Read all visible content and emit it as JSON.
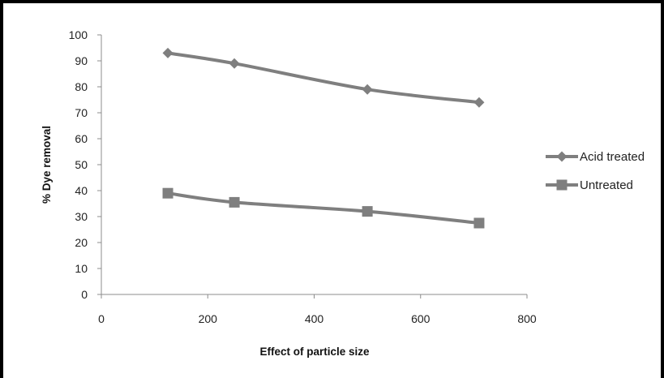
{
  "chart_data": {
    "type": "line",
    "title": "",
    "xlabel": "Effect of particle size",
    "ylabel": "% Dye removal",
    "xlim": [
      0,
      800
    ],
    "ylim": [
      0,
      100
    ],
    "x_ticks": [
      0,
      200,
      400,
      600,
      800
    ],
    "y_ticks": [
      0,
      10,
      20,
      30,
      40,
      50,
      60,
      70,
      80,
      90,
      100
    ],
    "grid": false,
    "legend_position": "right",
    "series": [
      {
        "name": "Acid treated",
        "marker": "diamond",
        "color": "#7f7f7f",
        "x": [
          125,
          250,
          500,
          710
        ],
        "y": [
          93,
          89,
          79,
          74
        ]
      },
      {
        "name": "Untreated",
        "marker": "square",
        "color": "#7f7f7f",
        "x": [
          125,
          250,
          500,
          710
        ],
        "y": [
          39,
          35.5,
          32,
          27.5
        ]
      }
    ]
  }
}
